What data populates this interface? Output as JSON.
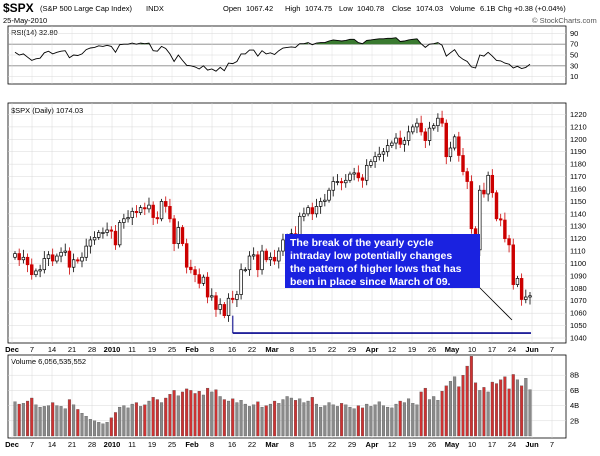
{
  "header": {
    "symbol": "$SPX",
    "name": "(S&P 500 Large Cap Index)",
    "exchange": "INDX",
    "date": "25-May-2010",
    "open_label": "Open",
    "open": "1067.42",
    "high_label": "High",
    "high": "1074.75",
    "low_label": "Low",
    "low": "1040.78",
    "close_label": "Close",
    "close": "1074.03",
    "volume_label": "Volume",
    "volume": "6.1B",
    "chg_label": "Chg",
    "chg": "+0.38 (+0.04%)",
    "brand": "© StockCharts.com"
  },
  "rsi_panel": {
    "label": "RSI(14) 32.80",
    "yticks": [
      "90",
      "70",
      "50",
      "30",
      "10"
    ]
  },
  "price_panel": {
    "label": "$SPX (Daily) 1074.03",
    "yticks": [
      "1220",
      "1210",
      "1200",
      "1190",
      "1180",
      "1170",
      "1160",
      "1150",
      "1140",
      "1130",
      "1120",
      "1110",
      "1100",
      "1090",
      "1080",
      "1070",
      "1060",
      "1050",
      "1040"
    ]
  },
  "volume_panel": {
    "label": "Volume 6,056,535,552",
    "yticks": [
      "8B",
      "6B",
      "4B",
      "2B"
    ]
  },
  "xaxis": {
    "ticks": [
      {
        "label": "Dec",
        "bold": true
      },
      {
        "label": "7",
        "bold": false
      },
      {
        "label": "14",
        "bold": false
      },
      {
        "label": "21",
        "bold": false
      },
      {
        "label": "28",
        "bold": false
      },
      {
        "label": "2010",
        "bold": true
      },
      {
        "label": "11",
        "bold": false
      },
      {
        "label": "19",
        "bold": false
      },
      {
        "label": "25",
        "bold": false
      },
      {
        "label": "Feb",
        "bold": true
      },
      {
        "label": "8",
        "bold": false
      },
      {
        "label": "16",
        "bold": false
      },
      {
        "label": "22",
        "bold": false
      },
      {
        "label": "Mar",
        "bold": true
      },
      {
        "label": "8",
        "bold": false
      },
      {
        "label": "15",
        "bold": false
      },
      {
        "label": "22",
        "bold": false
      },
      {
        "label": "29",
        "bold": false
      },
      {
        "label": "Apr",
        "bold": true
      },
      {
        "label": "12",
        "bold": false
      },
      {
        "label": "19",
        "bold": false
      },
      {
        "label": "26",
        "bold": false
      },
      {
        "label": "May",
        "bold": true
      },
      {
        "label": "10",
        "bold": false
      },
      {
        "label": "17",
        "bold": false
      },
      {
        "label": "24",
        "bold": false
      },
      {
        "label": "Jun",
        "bold": true
      },
      {
        "label": "7",
        "bold": false
      }
    ]
  },
  "annotation": {
    "lines": [
      "The break of the yearly cycle",
      "intraday low potentially changes",
      "the pattern of higher lows that has",
      "been in place since March of 09."
    ]
  },
  "colors": {
    "up": "#000000",
    "down": "#cc0000",
    "support_line": "#00008b",
    "annotation_bg": "#1a22e0",
    "rsi_fill": "#3a7a30",
    "vol_up": "#8a8a8a",
    "vol_down": "#cc3333",
    "grid": "#d8d8d8"
  },
  "chart_data": {
    "type": "candlestick",
    "title": "$SPX (Daily) 1074.03",
    "ylim": [
      1040,
      1222
    ],
    "support_level": 1044,
    "close": [
      1108,
      1103,
      1105,
      1099,
      1091,
      1094,
      1095,
      1104,
      1107,
      1102,
      1106,
      1109,
      1110,
      1097,
      1103,
      1102,
      1105,
      1114,
      1119,
      1121,
      1125,
      1125,
      1127,
      1126,
      1115,
      1133,
      1136,
      1137,
      1142,
      1141,
      1145,
      1144,
      1147,
      1137,
      1136,
      1150,
      1146,
      1136,
      1116,
      1129,
      1116,
      1097,
      1095,
      1091,
      1084,
      1089,
      1073,
      1074,
      1063,
      1067,
      1058,
      1072,
      1071,
      1075,
      1095,
      1095,
      1106,
      1107,
      1095,
      1110,
      1103,
      1105,
      1102,
      1110,
      1119,
      1122,
      1124,
      1123,
      1138,
      1140,
      1145,
      1140,
      1146,
      1150,
      1151,
      1159,
      1166,
      1166,
      1165,
      1167,
      1172,
      1173,
      1169,
      1167,
      1179,
      1182,
      1186,
      1188,
      1190,
      1195,
      1197,
      1201,
      1196,
      1199,
      1206,
      1210,
      1213,
      1206,
      1199,
      1209,
      1211,
      1217,
      1213,
      1186,
      1193,
      1202,
      1187,
      1174,
      1166,
      1128,
      1111,
      1159,
      1156,
      1171,
      1157,
      1136,
      1135,
      1120,
      1115,
      1083,
      1088,
      1071,
      1073,
      1074
    ],
    "volume": [
      4.5,
      4.2,
      4.3,
      4.6,
      5.0,
      4.1,
      3.8,
      3.9,
      4.0,
      4.4,
      4.0,
      3.9,
      3.6,
      4.8,
      4.1,
      3.5,
      3.0,
      2.6,
      2.2,
      2.0,
      1.8,
      1.6,
      1.8,
      2.4,
      3.1,
      3.8,
      4.0,
      3.7,
      4.2,
      4.4,
      3.9,
      4.1,
      4.6,
      5.1,
      4.8,
      4.4,
      5.0,
      5.5,
      6.0,
      5.3,
      5.8,
      6.2,
      6.0,
      5.6,
      5.9,
      5.4,
      6.3,
      5.8,
      6.1,
      5.2,
      4.8,
      4.6,
      4.9,
      4.4,
      4.7,
      4.2,
      3.9,
      4.1,
      4.5,
      3.8,
      4.0,
      4.2,
      4.6,
      4.3,
      4.8,
      5.2,
      5.0,
      4.7,
      4.9,
      4.4,
      4.6,
      5.1,
      4.2,
      3.8,
      4.0,
      4.4,
      4.1,
      3.9,
      4.3,
      4.1,
      3.8,
      3.6,
      4.0,
      3.7,
      4.2,
      3.9,
      4.1,
      4.5,
      4.0,
      3.8,
      3.7,
      4.2,
      4.6,
      4.4,
      4.9,
      4.3,
      4.1,
      5.8,
      6.3,
      4.8,
      5.2,
      4.7,
      5.9,
      6.6,
      7.2,
      7.8,
      6.5,
      8.0,
      9.2,
      10.5,
      7.0,
      6.0,
      6.4,
      5.8,
      7.1,
      6.9,
      7.4,
      7.8,
      6.2,
      8.1,
      7.4,
      6.6,
      7.6,
      6.1
    ],
    "rsi": [
      55,
      50,
      52,
      46,
      40,
      43,
      44,
      54,
      57,
      52,
      55,
      57,
      58,
      45,
      50,
      49,
      52,
      60,
      63,
      64,
      67,
      66,
      68,
      66,
      55,
      69,
      70,
      70,
      72,
      70,
      72,
      71,
      72,
      58,
      57,
      66,
      62,
      52,
      38,
      50,
      40,
      31,
      30,
      28,
      24,
      30,
      22,
      24,
      20,
      27,
      21,
      35,
      34,
      38,
      52,
      52,
      59,
      59,
      48,
      58,
      52,
      54,
      51,
      58,
      63,
      64,
      65,
      64,
      71,
      71,
      73,
      69,
      72,
      73,
      73,
      76,
      78,
      77,
      76,
      77,
      79,
      79,
      73,
      71,
      77,
      78,
      79,
      80,
      80,
      81,
      81,
      82,
      75,
      76,
      78,
      79,
      80,
      71,
      64,
      70,
      71,
      73,
      68,
      48,
      54,
      60,
      48,
      42,
      38,
      28,
      26,
      50,
      48,
      55,
      48,
      40,
      39,
      35,
      33,
      26,
      29,
      25,
      27,
      33
    ]
  }
}
